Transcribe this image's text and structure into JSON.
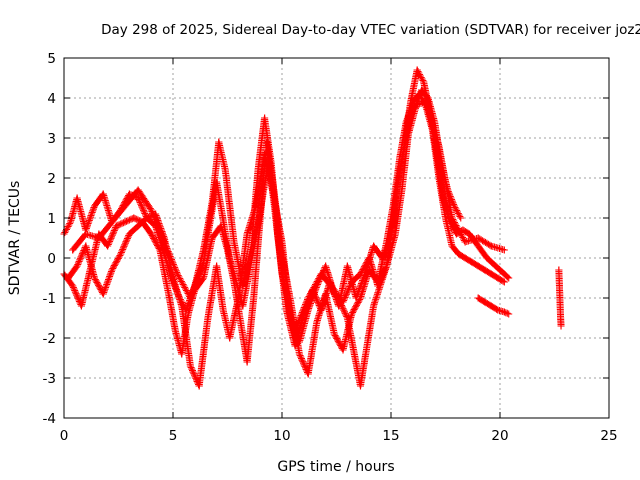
{
  "chart_data": {
    "type": "scatter",
    "title": "Day 298 of 2025, Sidereal Day-to-day VTEC variation (SDTVAR) for receiver joz2",
    "xlabel": "GPS time / hours",
    "ylabel": "SDTVAR / TECUs",
    "xlim": [
      0,
      25
    ],
    "ylim": [
      -4,
      5
    ],
    "xticks": [
      0,
      5,
      10,
      15,
      20,
      25
    ],
    "yticks": [
      -4,
      -3,
      -2,
      -1,
      0,
      1,
      2,
      3,
      4,
      5
    ],
    "grid": true,
    "marker": "+",
    "color": "#ff0000",
    "series": [
      {
        "name": "track-a",
        "x": [
          0.0,
          0.3,
          0.6,
          1.0,
          1.4,
          1.8,
          2.2,
          2.6,
          3.0,
          3.4,
          3.8,
          4.2,
          4.6,
          5.0,
          5.3,
          5.6,
          6.0,
          6.4,
          6.8,
          7.1,
          7.4,
          7.8,
          8.2,
          8.6,
          8.9,
          9.2,
          9.5,
          9.8,
          10.2,
          10.6,
          11.0,
          11.4,
          11.8,
          12.2,
          12.6,
          13.0,
          13.4,
          13.8,
          14.2,
          14.6,
          15.0,
          15.3,
          15.6,
          15.9,
          16.2,
          16.5,
          16.8,
          17.1,
          17.4,
          17.7,
          18.0,
          18.3,
          18.6,
          19.0,
          19.4,
          19.8,
          20.2,
          20.4
        ],
        "y": [
          0.6,
          0.9,
          1.5,
          0.7,
          1.3,
          1.6,
          0.9,
          1.2,
          1.6,
          1.5,
          1.0,
          0.8,
          0.1,
          -0.6,
          -1.0,
          -1.3,
          -0.7,
          0.2,
          1.4,
          2.9,
          2.2,
          0.4,
          -0.7,
          0.3,
          2.2,
          3.5,
          2.4,
          0.6,
          -1.3,
          -2.2,
          -1.4,
          -0.8,
          -1.3,
          -0.6,
          -1.2,
          -0.2,
          -1.0,
          -0.4,
          0.3,
          0.0,
          0.5,
          1.8,
          2.8,
          3.9,
          4.7,
          4.4,
          3.6,
          2.6,
          1.5,
          0.9,
          0.6,
          0.7,
          0.6,
          0.3,
          0.0,
          -0.2,
          -0.4,
          -0.5
        ]
      },
      {
        "name": "track-b",
        "x": [
          0.0,
          0.4,
          0.8,
          1.2,
          1.6,
          2.0,
          2.4,
          2.8,
          3.2,
          3.6,
          4.0,
          4.4,
          4.8,
          5.1,
          5.4,
          5.7,
          6.0,
          6.4,
          6.8,
          7.2,
          7.5,
          7.8,
          8.1,
          8.4,
          8.7,
          9.0,
          9.3,
          9.6,
          10.0,
          10.4,
          10.8,
          11.2,
          11.6,
          12.0,
          12.4,
          12.8,
          13.2,
          13.6,
          14.0,
          14.4,
          14.8,
          15.1,
          15.4,
          15.7,
          16.0,
          16.3,
          16.6,
          16.9,
          17.2,
          17.5,
          17.8,
          18.1,
          18.4,
          18.7,
          19.0,
          19.3,
          19.6,
          19.9,
          20.2
        ],
        "y": [
          -0.4,
          -0.7,
          -1.2,
          -0.3,
          0.6,
          0.3,
          0.8,
          0.9,
          1.0,
          0.9,
          0.6,
          0.2,
          -0.9,
          -1.8,
          -2.4,
          -1.4,
          -0.8,
          -0.5,
          0.5,
          0.8,
          0.2,
          -0.6,
          -1.6,
          -2.6,
          -1.0,
          1.0,
          2.9,
          1.8,
          0.1,
          -1.1,
          -2.4,
          -2.9,
          -1.6,
          -0.9,
          -1.9,
          -2.3,
          -1.4,
          -1.0,
          -0.3,
          -0.6,
          0.4,
          1.3,
          2.5,
          3.4,
          3.9,
          4.1,
          3.8,
          3.2,
          2.0,
          1.0,
          0.3,
          0.1,
          0.0,
          -0.1,
          -0.2,
          -0.3,
          -0.4,
          -0.5,
          -0.6
        ]
      },
      {
        "name": "track-c",
        "x": [
          0.2,
          0.6,
          1.0,
          1.4,
          1.8,
          2.2,
          2.6,
          3.0,
          3.4,
          3.8,
          4.2,
          4.6,
          5.0,
          5.4,
          5.8,
          6.2,
          6.6,
          7.0,
          7.3,
          7.6,
          8.0,
          8.4,
          8.8,
          9.2,
          9.6,
          10.0,
          10.4,
          10.8,
          11.2,
          11.6,
          12.0,
          12.4,
          12.8,
          13.2,
          13.6,
          14.0,
          14.4,
          14.8,
          15.2,
          15.5,
          15.8,
          16.1,
          16.4,
          16.7,
          17.0,
          17.3,
          17.6,
          17.9,
          18.2
        ],
        "y": [
          -0.5,
          -0.2,
          0.3,
          -0.5,
          -0.9,
          -0.3,
          0.1,
          0.6,
          0.8,
          1.0,
          1.1,
          0.5,
          -0.5,
          -1.2,
          -2.7,
          -3.2,
          -1.5,
          -0.2,
          -1.3,
          -2.0,
          -1.0,
          0.6,
          1.3,
          2.6,
          1.6,
          0.4,
          -1.6,
          -2.1,
          -1.3,
          -0.7,
          -0.2,
          -0.9,
          -1.1,
          -0.6,
          -0.4,
          0.0,
          -0.7,
          -0.2,
          0.6,
          1.7,
          3.1,
          3.7,
          4.2,
          4.0,
          3.4,
          2.4,
          1.7,
          1.3,
          1.0
        ]
      },
      {
        "name": "track-d",
        "x": [
          0.4,
          1.0,
          1.6,
          2.2,
          2.8,
          3.4,
          4.0,
          4.6,
          5.2,
          5.8,
          6.4,
          7.0,
          7.6,
          8.2,
          8.8,
          9.4,
          10.0,
          10.6,
          11.2,
          11.8,
          12.4,
          13.0,
          13.6,
          14.2,
          14.8,
          15.4,
          16.0,
          16.6,
          17.2,
          17.8,
          18.4,
          19.0,
          19.6,
          20.2
        ],
        "y": [
          0.2,
          0.6,
          0.5,
          0.9,
          1.3,
          1.7,
          1.2,
          0.4,
          -0.4,
          -1.0,
          -0.1,
          1.9,
          0.0,
          -1.2,
          0.5,
          2.5,
          -0.4,
          -1.8,
          -1.0,
          -0.4,
          -0.8,
          -1.5,
          -3.2,
          -1.2,
          -0.2,
          2.2,
          3.8,
          3.9,
          2.8,
          1.0,
          0.4,
          0.5,
          0.3,
          0.2
        ]
      },
      {
        "name": "segment-19-20",
        "x": [
          19.0,
          19.3,
          19.6,
          19.9,
          20.2,
          20.4
        ],
        "y": [
          -1.0,
          -1.1,
          -1.2,
          -1.3,
          -1.35,
          -1.4
        ]
      },
      {
        "name": "segment-22-23",
        "x": [
          22.7,
          22.72,
          22.74,
          22.76,
          22.78,
          22.8
        ],
        "y": [
          -0.3,
          -0.6,
          -0.9,
          -1.2,
          -1.5,
          -1.7
        ]
      }
    ]
  }
}
